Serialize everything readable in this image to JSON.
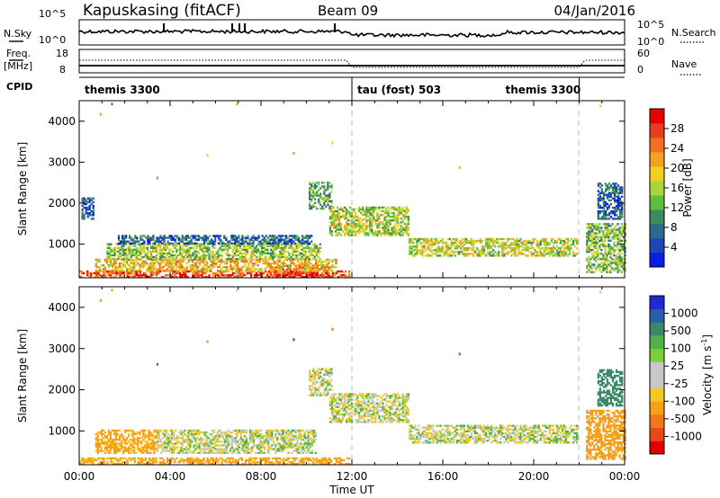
{
  "header": {
    "station": "Kapuskasing (fitACF)",
    "beam": "Beam 09",
    "date": "04/Jan/2016"
  },
  "strip_labels": {
    "nsky": "N.Sky",
    "nsky_ticks": [
      "10^5",
      "10^0"
    ],
    "nsearch": "N.Search",
    "nsearch_ticks": [
      "10^5",
      "10^0"
    ],
    "freq_line1": "Freq.",
    "freq_line2": "[MHz]",
    "freq_ticks": [
      "18",
      "8"
    ],
    "nave": "Nave",
    "nave_ticks": [
      "60",
      "0"
    ],
    "cpid": "CPID"
  },
  "cpid_segments": [
    {
      "name": "themis 3300",
      "start_h": 0,
      "end_h": 12
    },
    {
      "name": "tau (fost) 503",
      "start_h": 12,
      "end_h": 22
    },
    {
      "name": "themis 3300",
      "start_h": 22,
      "end_h": 24
    }
  ],
  "axes": {
    "ylabel": "Slant Range [km]",
    "xlabel": "Time UT",
    "yticks": [
      "1000",
      "2000",
      "3000",
      "4000"
    ],
    "xticks": [
      "00:00",
      "04:00",
      "08:00",
      "12:00",
      "16:00",
      "20:00",
      "00:00"
    ],
    "xlim_hours": [
      0,
      24
    ],
    "ylim_km": [
      180,
      4500
    ]
  },
  "colorbars": {
    "power": {
      "label": "Power [dB]",
      "ticks": [
        "4",
        "8",
        "12",
        "16",
        "20",
        "24",
        "28"
      ],
      "colors": [
        "#0a1ee6",
        "#1e46b4",
        "#2f6a8c",
        "#3c8c5a",
        "#5fbf3c",
        "#a8d63a",
        "#f0d020",
        "#f5a020",
        "#f07020",
        "#e83c1e",
        "#e60000"
      ]
    },
    "velocity": {
      "label_main": "Velocity  [m s",
      "label_sup": "-1",
      "label_end": "]",
      "ticks": [
        "1000",
        "500",
        "100",
        "25",
        "-25",
        "-100",
        "-500",
        "-1000"
      ],
      "colors": [
        "#1e2ad2",
        "#2a5ea8",
        "#3a8a6a",
        "#54b04a",
        "#7cce3c",
        "#c8c8c8",
        "#c8c8c8",
        "#f5c820",
        "#f5a018",
        "#f07818",
        "#e84818",
        "#e00000"
      ]
    }
  },
  "chart_data": [
    {
      "type": "heatmap",
      "title": "Power",
      "xlabel": "Time UT",
      "ylabel": "Slant Range [km]",
      "colorbar_label": "Power [dB]",
      "x_units": "hours UT",
      "ylim": [
        180,
        4500
      ],
      "regions": [
        {
          "t": [
            0.0,
            11.9
          ],
          "r": [
            180,
            320
          ],
          "value_db": 26
        },
        {
          "t": [
            8.6,
            10.5
          ],
          "r": [
            180,
            460
          ],
          "value_db": 29
        },
        {
          "t": [
            0.7,
            11.3
          ],
          "r": [
            330,
            620
          ],
          "value_db": 20
        },
        {
          "t": [
            1.2,
            10.6
          ],
          "r": [
            620,
            1000
          ],
          "value_db": 15
        },
        {
          "t": [
            1.7,
            10.2
          ],
          "r": [
            1000,
            1200
          ],
          "value_db": 7
        },
        {
          "t": [
            10.1,
            11.1
          ],
          "r": [
            1850,
            2500
          ],
          "value_db": 12
        },
        {
          "t": [
            11.0,
            14.5
          ],
          "r": [
            1200,
            1900
          ],
          "value_db": 16
        },
        {
          "t": [
            14.5,
            21.9
          ],
          "r": [
            700,
            1150
          ],
          "value_db": 17
        },
        {
          "t": [
            22.3,
            24.0
          ],
          "r": [
            300,
            1500
          ],
          "value_db": 14
        },
        {
          "t": [
            22.8,
            23.9
          ],
          "r": [
            1600,
            2500
          ],
          "value_db": 7
        },
        {
          "t": [
            0.1,
            0.6
          ],
          "r": [
            1600,
            2100
          ],
          "value_db": 7
        }
      ]
    },
    {
      "type": "heatmap",
      "title": "Velocity",
      "xlabel": "Time UT",
      "ylabel": "Slant Range [km]",
      "colorbar_label": "Velocity [m s-1]",
      "x_units": "hours UT",
      "ylim": [
        180,
        4500
      ],
      "regions": [
        {
          "t": [
            0.0,
            11.9
          ],
          "r": [
            180,
            320
          ],
          "value_ms": -150
        },
        {
          "t": [
            3.4,
            10.4
          ],
          "r": [
            450,
            1000
          ],
          "value_ms": 0
        },
        {
          "t": [
            0.7,
            3.4
          ],
          "r": [
            450,
            1000
          ],
          "value_ms": -150
        },
        {
          "t": [
            10.1,
            11.1
          ],
          "r": [
            1850,
            2500
          ],
          "value_ms": 0
        },
        {
          "t": [
            11.0,
            14.5
          ],
          "r": [
            1200,
            1900
          ],
          "value_ms": 0
        },
        {
          "t": [
            14.5,
            21.9
          ],
          "r": [
            700,
            1150
          ],
          "value_ms": 0
        },
        {
          "t": [
            22.3,
            24.0
          ],
          "r": [
            300,
            1500
          ],
          "value_ms": -200
        },
        {
          "t": [
            22.8,
            23.9
          ],
          "r": [
            1600,
            2500
          ],
          "value_ms": 200
        }
      ]
    }
  ]
}
